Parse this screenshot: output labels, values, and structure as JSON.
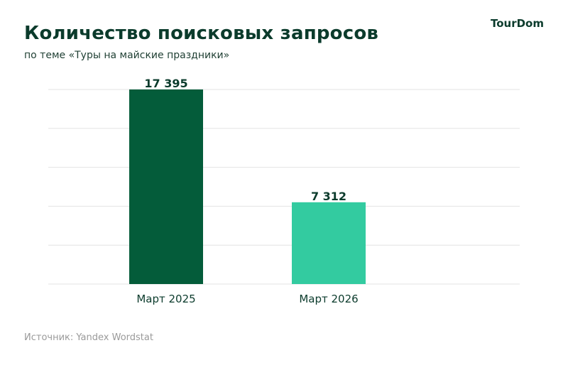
{
  "header": {
    "title": "Количество поисковых запросов",
    "subtitle": "по теме «Туры на майские праздники»",
    "logo": "TourDom"
  },
  "footer": {
    "source": "Источник: Yandex Wordstat"
  },
  "colors": {
    "bar_2025": "#045c3a",
    "bar_2026": "#33cba0",
    "text": "#0b3b2c",
    "grid": "#e3e3e3"
  },
  "chart_data": {
    "type": "bar",
    "categories": [
      "Март 2025",
      "Март 2026"
    ],
    "values": [
      17395,
      7312
    ],
    "value_labels": [
      "17 395",
      "7 312"
    ],
    "title": "Количество поисковых запросов",
    "subtitle": "по теме «Туры на майские праздники»",
    "xlabel": "",
    "ylabel": "",
    "ylim": [
      0,
      17395
    ],
    "grid": true,
    "gridlines": 5,
    "legend": "none"
  }
}
